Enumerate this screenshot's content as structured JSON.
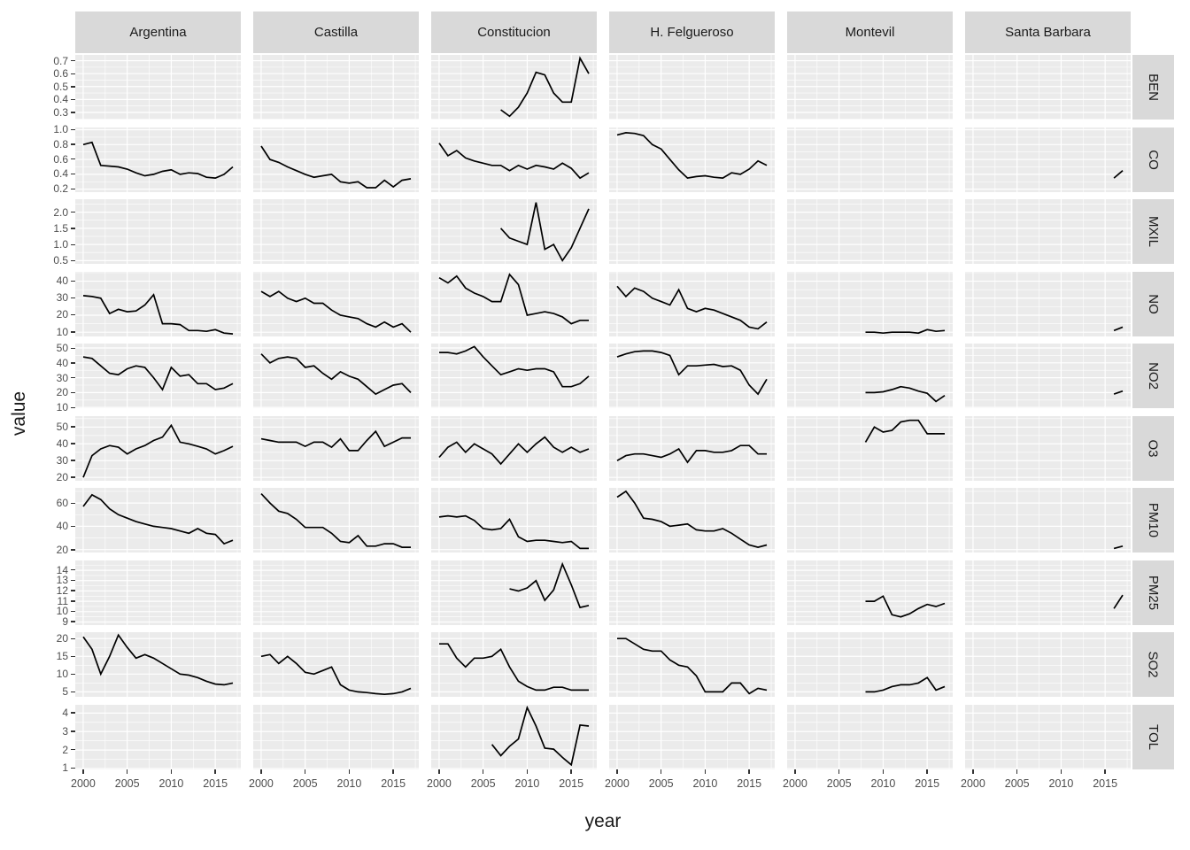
{
  "chart_data": {
    "type": "line",
    "title": "",
    "xlabel": "year",
    "ylabel": "value",
    "legend": "none",
    "grid": "on",
    "style": {
      "panel_bg": "#ebebeb",
      "grid_major": "#ffffff",
      "grid_minor": "#ffffff",
      "strip_bg": "#d9d9d9",
      "strip_text": "#1a1a1a",
      "axis_text": "#4d4d4d",
      "tick_mark": "#333333",
      "line_color": "#000000"
    },
    "x": {
      "lim": [
        1999.1,
        2017.9
      ],
      "major_ticks": [
        2000,
        2005,
        2010,
        2015
      ],
      "tick_labels": [
        "2000",
        "2005",
        "2010",
        "2015"
      ],
      "minor_ticks": [
        2002.5,
        2007.5,
        2012.5,
        2017.5
      ]
    },
    "facet": {
      "cols": [
        "Argentina",
        "Castilla",
        "Constitucion",
        "H. Felgueroso",
        "Montevil",
        "Santa Barbara"
      ],
      "rows": [
        {
          "label": "BEN",
          "ylim": [
            0.245,
            0.745
          ],
          "ticks": [
            0.3,
            0.4,
            0.5,
            0.6,
            0.7
          ],
          "tick_labels": [
            "0.3",
            "0.4",
            "0.5",
            "0.6",
            "0.7"
          ]
        },
        {
          "label": "CO",
          "ylim": [
            0.16,
            1.03
          ],
          "ticks": [
            0.2,
            0.4,
            0.6,
            0.8,
            1.0
          ],
          "tick_labels": [
            "0.2",
            "0.4",
            "0.6",
            "0.8",
            "1.0"
          ]
        },
        {
          "label": "MXIL",
          "ylim": [
            0.4,
            2.4
          ],
          "ticks": [
            0.5,
            1.0,
            1.5,
            2.0
          ],
          "tick_labels": [
            "0.5",
            "1.0",
            "1.5",
            "2.0"
          ]
        },
        {
          "label": "NO",
          "ylim": [
            7.5,
            45.5
          ],
          "ticks": [
            10,
            20,
            30,
            40
          ],
          "tick_labels": [
            "10",
            "20",
            "30",
            "40"
          ]
        },
        {
          "label": "NO2",
          "ylim": [
            9.5,
            53
          ],
          "ticks": [
            10,
            20,
            30,
            40,
            50
          ],
          "tick_labels": [
            "10",
            "20",
            "30",
            "40",
            "50"
          ]
        },
        {
          "label": "O3",
          "ylim": [
            18,
            56.5
          ],
          "ticks": [
            20,
            30,
            40,
            50
          ],
          "tick_labels": [
            "20",
            "30",
            "40",
            "50"
          ]
        },
        {
          "label": "PM10",
          "ylim": [
            17.5,
            73
          ],
          "ticks": [
            20,
            40,
            60
          ],
          "tick_labels": [
            "20",
            "40",
            "60"
          ]
        },
        {
          "label": "PM25",
          "ylim": [
            8.7,
            14.95
          ],
          "ticks": [
            9,
            10,
            11,
            12,
            13,
            14
          ],
          "tick_labels": [
            "9",
            "10",
            "11",
            "12",
            "13",
            "14"
          ]
        },
        {
          "label": "SO2",
          "ylim": [
            3.6,
            21.8
          ],
          "ticks": [
            5,
            10,
            15,
            20
          ],
          "tick_labels": [
            "5",
            "10",
            "15",
            "20"
          ]
        },
        {
          "label": "TOL",
          "ylim": [
            0.95,
            4.45
          ],
          "ticks": [
            1,
            2,
            3,
            4
          ],
          "tick_labels": [
            "1",
            "2",
            "3",
            "4"
          ]
        }
      ]
    },
    "series": {
      "BEN": {
        "Constitucion": {
          "start": 2007,
          "values": [
            0.32,
            0.27,
            0.34,
            0.45,
            0.61,
            0.59,
            0.45,
            0.38,
            0.38,
            0.72,
            0.6
          ]
        }
      },
      "CO": {
        "Argentina": {
          "start": 2000,
          "values": [
            0.8,
            0.83,
            0.52,
            0.51,
            0.5,
            0.47,
            0.42,
            0.38,
            0.4,
            0.44,
            0.46,
            0.4,
            0.42,
            0.41,
            0.36,
            0.35,
            0.4,
            0.5
          ]
        },
        "Castilla": {
          "start": 2000,
          "values": [
            0.78,
            0.6,
            0.56,
            0.5,
            0.45,
            0.4,
            0.36,
            0.38,
            0.4,
            0.3,
            0.28,
            0.3,
            0.22,
            0.22,
            0.32,
            0.23,
            0.32,
            0.34
          ]
        },
        "Constitucion": {
          "start": 2000,
          "values": [
            0.82,
            0.65,
            0.72,
            0.62,
            0.58,
            0.55,
            0.52,
            0.52,
            0.45,
            0.52,
            0.47,
            0.52,
            0.5,
            0.47,
            0.55,
            0.48,
            0.35,
            0.42
          ]
        },
        "H. Felgueroso": {
          "start": 2000,
          "values": [
            0.93,
            0.96,
            0.95,
            0.92,
            0.8,
            0.74,
            0.6,
            0.46,
            0.35,
            0.37,
            0.38,
            0.36,
            0.35,
            0.42,
            0.4,
            0.47,
            0.58,
            0.52
          ]
        },
        "Santa Barbara": {
          "start": 2016,
          "values": [
            0.35,
            0.45
          ]
        }
      },
      "MXIL": {
        "Constitucion": {
          "start": 2007,
          "values": [
            1.5,
            1.2,
            1.1,
            1.0,
            2.3,
            0.85,
            1.0,
            0.5,
            0.9,
            1.5,
            2.1
          ]
        }
      },
      "NO": {
        "Argentina": {
          "start": 2000,
          "values": [
            31.5,
            31,
            30,
            21,
            23.5,
            22,
            22.5,
            26,
            32,
            15,
            15,
            14.5,
            11,
            11,
            10.5,
            11.5,
            9.5,
            9
          ]
        },
        "Castilla": {
          "start": 2000,
          "values": [
            34,
            31,
            34,
            30,
            28,
            30,
            27,
            27,
            23,
            20,
            19,
            18,
            15,
            13,
            16,
            13,
            15,
            10
          ]
        },
        "Constitucion": {
          "start": 2000,
          "values": [
            42,
            39,
            43,
            36,
            33,
            31,
            28,
            28,
            44,
            38,
            20,
            21,
            22,
            21,
            19,
            15,
            17,
            17
          ]
        },
        "H. Felgueroso": {
          "start": 2000,
          "values": [
            37,
            31,
            36,
            34,
            30,
            28,
            26,
            35,
            24,
            22,
            24,
            23,
            21,
            19,
            17,
            13,
            12,
            16
          ]
        },
        "Montevil": {
          "start": 2008,
          "values": [
            10,
            10,
            9.5,
            10,
            10,
            10,
            9.5,
            11.5,
            10.5,
            11
          ]
        },
        "Santa Barbara": {
          "start": 2016,
          "values": [
            11,
            13
          ]
        }
      },
      "NO2": {
        "Argentina": {
          "start": 2000,
          "values": [
            44,
            43,
            38,
            33,
            32,
            36,
            38,
            37,
            30,
            22,
            37,
            31,
            32,
            26,
            26,
            22,
            23,
            26
          ]
        },
        "Castilla": {
          "start": 2000,
          "values": [
            46,
            40,
            43,
            44,
            43,
            37,
            38,
            33,
            29,
            34,
            31,
            29,
            24,
            19,
            22,
            25,
            26,
            20
          ]
        },
        "Constitucion": {
          "start": 2000,
          "values": [
            47,
            47,
            46,
            48,
            51,
            44,
            38,
            32,
            34,
            36,
            35,
            36,
            36,
            34,
            24,
            24,
            26,
            31
          ]
        },
        "H. Felgueroso": {
          "start": 2000,
          "values": [
            44,
            46,
            47.5,
            48,
            48,
            47,
            45,
            32,
            38,
            38,
            38.5,
            39,
            37.5,
            38,
            35,
            25,
            19,
            29
          ]
        },
        "Montevil": {
          "start": 2008,
          "values": [
            20,
            20,
            20.5,
            22,
            24,
            23,
            21,
            19.5,
            14,
            18
          ]
        },
        "Santa Barbara": {
          "start": 2016,
          "values": [
            19,
            21
          ]
        }
      },
      "O3": {
        "Argentina": {
          "start": 2000,
          "values": [
            20,
            33,
            37,
            39,
            38,
            34,
            37,
            39,
            42,
            44,
            51,
            41,
            40,
            38.5,
            37,
            34,
            36,
            38.5
          ]
        },
        "Castilla": {
          "start": 2000,
          "values": [
            43,
            42,
            41,
            41,
            41,
            38.5,
            41,
            41,
            38,
            43,
            36,
            36,
            42,
            47.5,
            38.5,
            41,
            43.5,
            43.5
          ]
        },
        "Constitucion": {
          "start": 2000,
          "values": [
            32,
            38,
            41,
            35,
            40,
            37,
            34,
            28,
            34,
            40,
            35,
            40,
            44,
            38,
            35,
            38,
            35,
            37
          ]
        },
        "H. Felgueroso": {
          "start": 2000,
          "values": [
            30,
            33,
            34,
            34,
            33,
            32,
            34,
            37,
            29,
            36,
            36,
            35,
            35,
            36,
            39,
            39,
            34,
            34
          ]
        },
        "Montevil": {
          "start": 2008,
          "values": [
            41,
            50,
            47,
            48,
            53,
            54,
            54,
            46,
            46,
            46
          ]
        }
      },
      "PM10": {
        "Argentina": {
          "start": 2000,
          "values": [
            57,
            67,
            63,
            55,
            50,
            47,
            44,
            42,
            40,
            39,
            38,
            36,
            34,
            38,
            34,
            33,
            25,
            28
          ]
        },
        "Castilla": {
          "start": 2000,
          "values": [
            68,
            60,
            53,
            51,
            46,
            39,
            39,
            39,
            34,
            27,
            26,
            32,
            23,
            23,
            25,
            25,
            22,
            22
          ]
        },
        "Constitucion": {
          "start": 2000,
          "values": [
            48,
            49,
            48,
            49,
            45,
            38,
            37,
            38,
            46,
            31,
            27,
            28,
            28,
            27,
            26,
            27,
            21,
            21
          ]
        },
        "H. Felgueroso": {
          "start": 2000,
          "values": [
            65,
            70,
            60,
            47,
            46,
            44,
            40,
            41,
            42,
            37,
            36,
            36,
            38,
            34,
            29,
            24,
            22,
            24
          ]
        },
        "Santa Barbara": {
          "start": 2016,
          "values": [
            21,
            23
          ]
        }
      },
      "PM25": {
        "Constitucion": {
          "start": 2008,
          "values": [
            12.2,
            12.0,
            12.3,
            13.0,
            11.1,
            12.1,
            14.6,
            12.6,
            10.4,
            10.6
          ]
        },
        "Montevil": {
          "start": 2008,
          "values": [
            11,
            11,
            11.5,
            9.7,
            9.5,
            9.8,
            10.3,
            10.7,
            10.5,
            10.8
          ]
        },
        "Santa Barbara": {
          "start": 2016,
          "values": [
            10.3,
            11.6
          ]
        }
      },
      "SO2": {
        "Argentina": {
          "start": 2000,
          "values": [
            20.5,
            17,
            10,
            15,
            21,
            17.5,
            14.5,
            15.5,
            14.5,
            13,
            11.5,
            10,
            9.7,
            9,
            8,
            7.2,
            7,
            7.5
          ]
        },
        "Castilla": {
          "start": 2000,
          "values": [
            15,
            15.5,
            13,
            15,
            13,
            10.5,
            10,
            11,
            12,
            7,
            5.5,
            5,
            4.8,
            4.5,
            4.3,
            4.5,
            5,
            6
          ]
        },
        "Constitucion": {
          "start": 2000,
          "values": [
            18.5,
            18.5,
            14.5,
            12,
            14.5,
            14.5,
            15,
            17,
            12,
            8,
            6.5,
            5.5,
            5.5,
            6.3,
            6.3,
            5.5,
            5.5,
            5.5
          ]
        },
        "H. Felgueroso": {
          "start": 2000,
          "values": [
            20,
            20,
            18.5,
            17,
            16.5,
            16.5,
            14,
            12.5,
            12,
            9.5,
            5,
            5,
            5,
            7.5,
            7.5,
            4.5,
            6,
            5.5
          ]
        },
        "Montevil": {
          "start": 2008,
          "values": [
            5,
            5,
            5.5,
            6.5,
            7,
            7,
            7.5,
            9,
            5.5,
            6.5
          ]
        }
      },
      "TOL": {
        "Constitucion": {
          "start": 2006,
          "values": [
            2.3,
            1.7,
            2.2,
            2.6,
            4.3,
            3.3,
            2.1,
            2.05,
            1.6,
            1.2,
            3.35,
            3.3
          ]
        }
      }
    }
  }
}
